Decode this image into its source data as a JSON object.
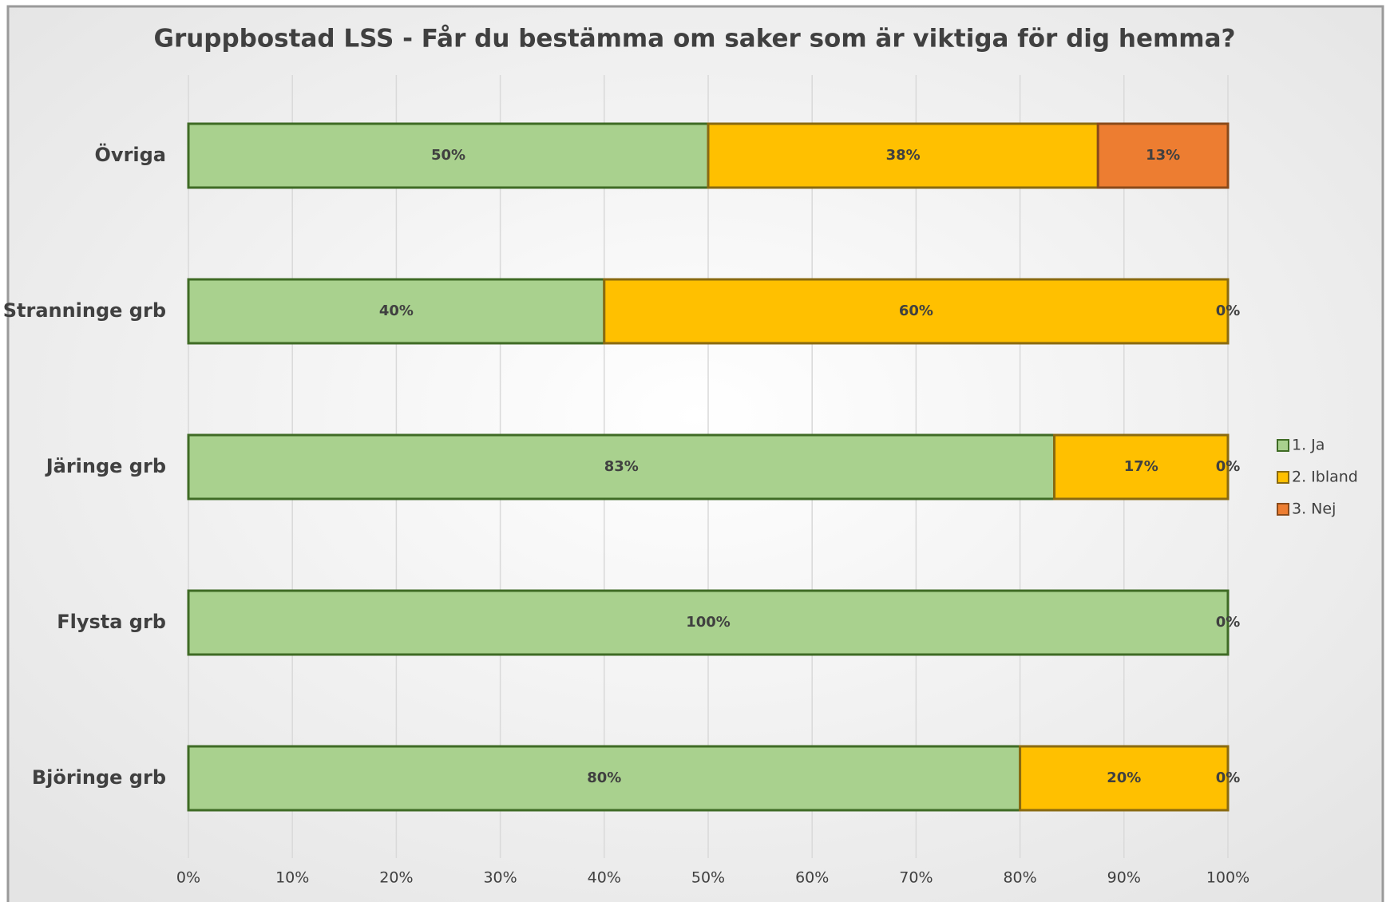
{
  "chart_data": {
    "type": "bar",
    "orientation": "horizontal",
    "stacked": true,
    "title": "Gruppbostad LSS - Får du bestämma om saker som är viktiga för dig hemma?",
    "categories": [
      "Övriga",
      "Stranninge grb",
      "Järinge grb",
      "Flysta grb",
      "Björinge grb"
    ],
    "series": [
      {
        "name": "1. Ja",
        "color": "#a9d18e",
        "values": [
          50,
          40,
          83.3,
          100,
          80
        ],
        "value_labels": [
          "50%",
          "40%",
          "83%",
          "100%",
          "80%"
        ]
      },
      {
        "name": "2. Ibland",
        "color": "#ffc000",
        "values": [
          37.5,
          60,
          16.7,
          null,
          20
        ],
        "value_labels": [
          "38%",
          "60%",
          "17%",
          null,
          "20%"
        ]
      },
      {
        "name": "3. Nej",
        "color": "#ed7d31",
        "values": [
          12.5,
          0,
          0,
          0,
          0
        ],
        "value_labels": [
          "13%",
          "0%",
          "0%",
          "0%",
          "0%"
        ]
      }
    ],
    "xlim": [
      0,
      100
    ],
    "xticks": [
      {
        "value": 0,
        "label": "0%"
      },
      {
        "value": 10,
        "label": "10%"
      },
      {
        "value": 20,
        "label": "20%"
      },
      {
        "value": 30,
        "label": "30%"
      },
      {
        "value": 40,
        "label": "40%"
      },
      {
        "value": 50,
        "label": "50%"
      },
      {
        "value": 60,
        "label": "60%"
      },
      {
        "value": 70,
        "label": "70%"
      },
      {
        "value": 80,
        "label": "80%"
      },
      {
        "value": 90,
        "label": "90%"
      },
      {
        "value": 100,
        "label": "100%"
      }
    ],
    "grid": true,
    "legend": "right"
  }
}
